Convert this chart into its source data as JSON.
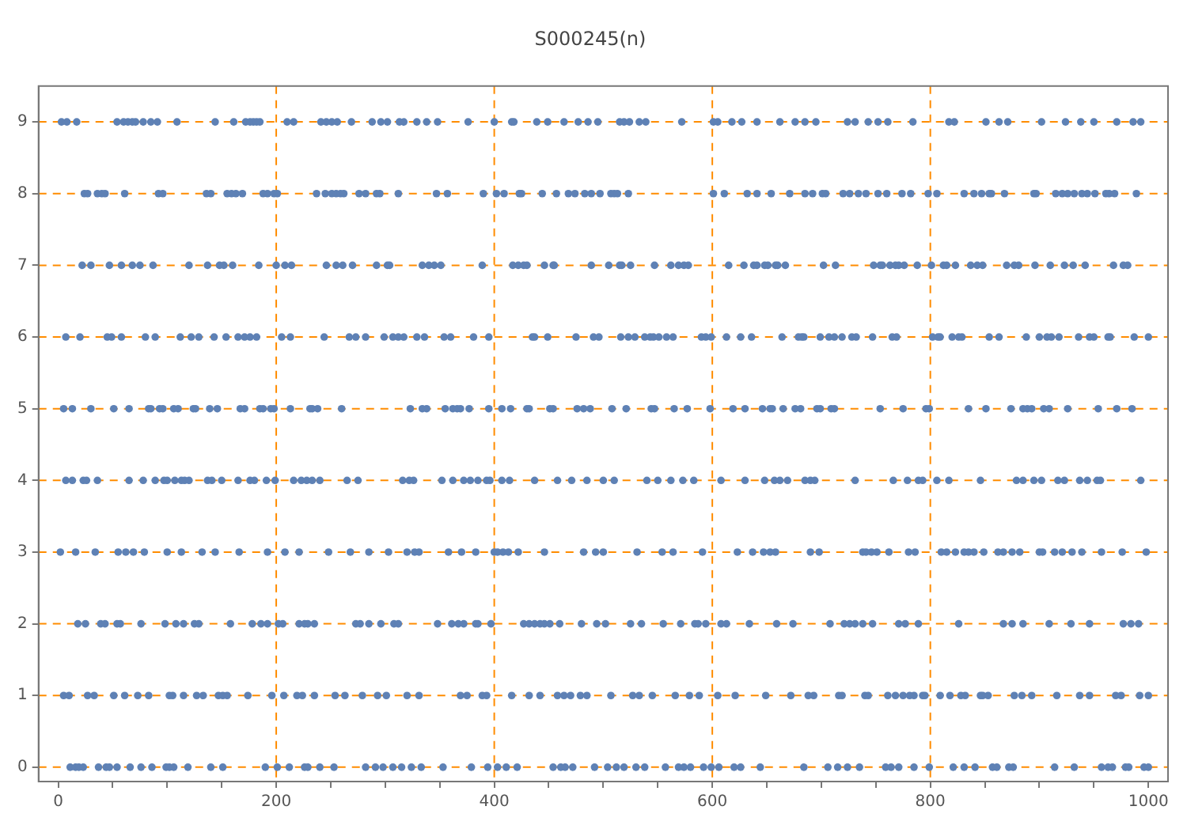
{
  "chart_data": {
    "type": "scatter",
    "title": "S000245(n)",
    "xlim": [
      -18,
      1018
    ],
    "ylim": [
      -0.2,
      9.5
    ],
    "xticks": [
      0,
      {
        "value": 50,
        "label": null
      },
      {
        "value": 100,
        "label": null
      },
      {
        "value": 150,
        "label": null
      },
      200,
      {
        "value": 250,
        "label": null
      },
      {
        "value": 300,
        "label": null
      },
      {
        "value": 350,
        "label": null
      },
      400,
      {
        "value": 450,
        "label": null
      },
      {
        "value": 500,
        "label": null
      },
      {
        "value": 550,
        "label": null
      },
      600,
      {
        "value": 650,
        "label": null
      },
      {
        "value": 700,
        "label": null
      },
      {
        "value": 750,
        "label": null
      },
      800,
      {
        "value": 850,
        "label": null
      },
      {
        "value": 900,
        "label": null
      },
      {
        "value": 950,
        "label": null
      },
      1000
    ],
    "yticks": [
      0,
      1,
      2,
      3,
      4,
      5,
      6,
      7,
      8,
      9
    ],
    "legend": false,
    "marker": "circle",
    "series": [
      {
        "color": "#5e81b5",
        "x": [
          11,
          16,
          19,
          23,
          37,
          44,
          47,
          54,
          66,
          76,
          86,
          99,
          102,
          106,
          119,
          140,
          151,
          190,
          201,
          212,
          226,
          229,
          240,
          253,
          282,
          291,
          298,
          307,
          315,
          324,
          333,
          353,
          379,
          394,
          403,
          411,
          421,
          454,
          461,
          465,
          472,
          492,
          504,
          512,
          519,
          530,
          538,
          557,
          569,
          574,
          580,
          592,
          599,
          606,
          620,
          626,
          644,
          684,
          706,
          715,
          724,
          735,
          759,
          764,
          771,
          785,
          799,
          821,
          831,
          841,
          857,
          861,
          872,
          876,
          914,
          932,
          957,
          963,
          967,
          979,
          982,
          996,
          1000
        ],
        "values": [
          0,
          0,
          0,
          0,
          0,
          0,
          0,
          0,
          0,
          0,
          0,
          0,
          0,
          0,
          0,
          0,
          0,
          0,
          0,
          0,
          0,
          0,
          0,
          0,
          0,
          0,
          0,
          0,
          0,
          0,
          0,
          0,
          0,
          0,
          0,
          0,
          0,
          0,
          0,
          0,
          0,
          0,
          0,
          0,
          0,
          0,
          0,
          0,
          0,
          0,
          0,
          0,
          0,
          0,
          0,
          0,
          0,
          0,
          0,
          0,
          0,
          0,
          0,
          0,
          0,
          0,
          0,
          0,
          0,
          0,
          0,
          0,
          0,
          0,
          0,
          0,
          0,
          0,
          0,
          0,
          0,
          0,
          0
        ]
      },
      {
        "color": "#5e81b5",
        "x": [
          5,
          10,
          27,
          33,
          51,
          61,
          73,
          83,
          102,
          105,
          115,
          127,
          133,
          147,
          151,
          155,
          174,
          196,
          207,
          219,
          224,
          235,
          254,
          263,
          279,
          293,
          301,
          320,
          331,
          369,
          375,
          389,
          393,
          416,
          432,
          442,
          458,
          464,
          470,
          479,
          485,
          507,
          527,
          533,
          545,
          566,
          579,
          588,
          605,
          621,
          649,
          672,
          688,
          693,
          716,
          719,
          740,
          743,
          761,
          768,
          775,
          781,
          785,
          793,
          795,
          809,
          818,
          828,
          832,
          846,
          848,
          853,
          877,
          884,
          893,
          916,
          937,
          946,
          970,
          975,
          992,
          1000
        ],
        "values": [
          1,
          1,
          1,
          1,
          1,
          1,
          1,
          1,
          1,
          1,
          1,
          1,
          1,
          1,
          1,
          1,
          1,
          1,
          1,
          1,
          1,
          1,
          1,
          1,
          1,
          1,
          1,
          1,
          1,
          1,
          1,
          1,
          1,
          1,
          1,
          1,
          1,
          1,
          1,
          1,
          1,
          1,
          1,
          1,
          1,
          1,
          1,
          1,
          1,
          1,
          1,
          1,
          1,
          1,
          1,
          1,
          1,
          1,
          1,
          1,
          1,
          1,
          1,
          1,
          1,
          1,
          1,
          1,
          1,
          1,
          1,
          1,
          1,
          1,
          1,
          1,
          1,
          1,
          1,
          1,
          1,
          1
        ]
      },
      {
        "color": "#5e81b5",
        "x": [
          18,
          25,
          39,
          43,
          54,
          57,
          76,
          98,
          108,
          115,
          125,
          129,
          158,
          178,
          186,
          192,
          202,
          206,
          221,
          226,
          229,
          235,
          273,
          277,
          285,
          296,
          308,
          312,
          348,
          361,
          367,
          372,
          383,
          385,
          397,
          427,
          432,
          437,
          442,
          446,
          451,
          460,
          480,
          494,
          502,
          525,
          535,
          555,
          571,
          584,
          587,
          594,
          608,
          613,
          634,
          659,
          674,
          708,
          721,
          726,
          731,
          738,
          747,
          771,
          777,
          789,
          826,
          867,
          875,
          885,
          909,
          929,
          946,
          977,
          984,
          991
        ],
        "values": [
          2,
          2,
          2,
          2,
          2,
          2,
          2,
          2,
          2,
          2,
          2,
          2,
          2,
          2,
          2,
          2,
          2,
          2,
          2,
          2,
          2,
          2,
          2,
          2,
          2,
          2,
          2,
          2,
          2,
          2,
          2,
          2,
          2,
          2,
          2,
          2,
          2,
          2,
          2,
          2,
          2,
          2,
          2,
          2,
          2,
          2,
          2,
          2,
          2,
          2,
          2,
          2,
          2,
          2,
          2,
          2,
          2,
          2,
          2,
          2,
          2,
          2,
          2,
          2,
          2,
          2,
          2,
          2,
          2,
          2,
          2,
          2,
          2,
          2,
          2,
          2
        ]
      },
      {
        "color": "#5e81b5",
        "x": [
          2,
          16,
          34,
          55,
          62,
          69,
          79,
          100,
          113,
          132,
          144,
          166,
          192,
          208,
          221,
          248,
          268,
          285,
          303,
          320,
          327,
          331,
          358,
          370,
          383,
          400,
          403,
          408,
          413,
          422,
          446,
          482,
          493,
          500,
          531,
          554,
          564,
          591,
          623,
          637,
          647,
          653,
          658,
          690,
          698,
          738,
          741,
          746,
          751,
          762,
          780,
          786,
          810,
          815,
          823,
          831,
          835,
          840,
          849,
          862,
          867,
          875,
          882,
          900,
          903,
          914,
          921,
          930,
          939,
          957,
          976,
          998
        ],
        "values": [
          3,
          3,
          3,
          3,
          3,
          3,
          3,
          3,
          3,
          3,
          3,
          3,
          3,
          3,
          3,
          3,
          3,
          3,
          3,
          3,
          3,
          3,
          3,
          3,
          3,
          3,
          3,
          3,
          3,
          3,
          3,
          3,
          3,
          3,
          3,
          3,
          3,
          3,
          3,
          3,
          3,
          3,
          3,
          3,
          3,
          3,
          3,
          3,
          3,
          3,
          3,
          3,
          3,
          3,
          3,
          3,
          3,
          3,
          3,
          3,
          3,
          3,
          3,
          3,
          3,
          3,
          3,
          3,
          3,
          3,
          3,
          3
        ]
      },
      {
        "color": "#5e81b5",
        "x": [
          7,
          13,
          23,
          26,
          36,
          65,
          78,
          89,
          97,
          100,
          107,
          113,
          116,
          120,
          137,
          141,
          150,
          165,
          176,
          180,
          191,
          199,
          216,
          223,
          228,
          233,
          240,
          265,
          275,
          316,
          322,
          326,
          352,
          362,
          372,
          378,
          385,
          393,
          396,
          407,
          414,
          437,
          458,
          471,
          485,
          500,
          510,
          540,
          550,
          562,
          573,
          583,
          608,
          630,
          648,
          657,
          662,
          669,
          685,
          690,
          694,
          731,
          766,
          779,
          789,
          793,
          806,
          817,
          846,
          879,
          885,
          895,
          902,
          917,
          923,
          937,
          944,
          953,
          956,
          993
        ],
        "values": [
          4,
          4,
          4,
          4,
          4,
          4,
          4,
          4,
          4,
          4,
          4,
          4,
          4,
          4,
          4,
          4,
          4,
          4,
          4,
          4,
          4,
          4,
          4,
          4,
          4,
          4,
          4,
          4,
          4,
          4,
          4,
          4,
          4,
          4,
          4,
          4,
          4,
          4,
          4,
          4,
          4,
          4,
          4,
          4,
          4,
          4,
          4,
          4,
          4,
          4,
          4,
          4,
          4,
          4,
          4,
          4,
          4,
          4,
          4,
          4,
          4,
          4,
          4,
          4,
          4,
          4,
          4,
          4,
          4,
          4,
          4,
          4,
          4,
          4,
          4,
          4,
          4,
          4,
          4,
          4
        ]
      },
      {
        "color": "#5e81b5",
        "x": [
          5,
          13,
          30,
          51,
          65,
          83,
          85,
          93,
          96,
          106,
          110,
          124,
          126,
          139,
          146,
          167,
          171,
          185,
          188,
          195,
          198,
          213,
          231,
          233,
          238,
          260,
          323,
          334,
          338,
          355,
          362,
          366,
          369,
          377,
          395,
          407,
          415,
          430,
          432,
          451,
          454,
          476,
          482,
          488,
          508,
          521,
          544,
          547,
          565,
          577,
          598,
          619,
          630,
          646,
          653,
          655,
          665,
          676,
          681,
          696,
          699,
          709,
          712,
          754,
          775,
          796,
          799,
          835,
          851,
          874,
          885,
          889,
          893,
          904,
          909,
          926,
          954,
          971,
          985
        ],
        "values": [
          5,
          5,
          5,
          5,
          5,
          5,
          5,
          5,
          5,
          5,
          5,
          5,
          5,
          5,
          5,
          5,
          5,
          5,
          5,
          5,
          5,
          5,
          5,
          5,
          5,
          5,
          5,
          5,
          5,
          5,
          5,
          5,
          5,
          5,
          5,
          5,
          5,
          5,
          5,
          5,
          5,
          5,
          5,
          5,
          5,
          5,
          5,
          5,
          5,
          5,
          5,
          5,
          5,
          5,
          5,
          5,
          5,
          5,
          5,
          5,
          5,
          5,
          5,
          5,
          5,
          5,
          5,
          5,
          5,
          5,
          5,
          5,
          5,
          5,
          5,
          5,
          5,
          5,
          5
        ]
      },
      {
        "color": "#5e81b5",
        "x": [
          7,
          20,
          45,
          49,
          58,
          80,
          89,
          112,
          122,
          129,
          143,
          154,
          165,
          171,
          176,
          182,
          205,
          213,
          244,
          267,
          273,
          282,
          299,
          307,
          312,
          317,
          329,
          336,
          354,
          360,
          381,
          395,
          435,
          437,
          449,
          475,
          491,
          496,
          516,
          523,
          529,
          538,
          543,
          546,
          551,
          558,
          564,
          590,
          594,
          599,
          613,
          626,
          636,
          664,
          679,
          684,
          682,
          699,
          707,
          712,
          719,
          728,
          732,
          747,
          765,
          769,
          802,
          807,
          809,
          820,
          826,
          829,
          854,
          863,
          888,
          900,
          907,
          911,
          918,
          936,
          946,
          950,
          963,
          965,
          987,
          1000
        ],
        "values": [
          6,
          6,
          6,
          6,
          6,
          6,
          6,
          6,
          6,
          6,
          6,
          6,
          6,
          6,
          6,
          6,
          6,
          6,
          6,
          6,
          6,
          6,
          6,
          6,
          6,
          6,
          6,
          6,
          6,
          6,
          6,
          6,
          6,
          6,
          6,
          6,
          6,
          6,
          6,
          6,
          6,
          6,
          6,
          6,
          6,
          6,
          6,
          6,
          6,
          6,
          6,
          6,
          6,
          6,
          6,
          6,
          6,
          6,
          6,
          6,
          6,
          6,
          6,
          6,
          6,
          6,
          6,
          6,
          6,
          6,
          6,
          6,
          6,
          6,
          6,
          6,
          6,
          6,
          6,
          6,
          6,
          6,
          6,
          6,
          6,
          6
        ]
      },
      {
        "color": "#5e81b5",
        "x": [
          22,
          30,
          47,
          58,
          68,
          75,
          87,
          120,
          137,
          148,
          152,
          160,
          184,
          200,
          208,
          214,
          246,
          255,
          261,
          270,
          292,
          302,
          304,
          334,
          340,
          345,
          351,
          389,
          417,
          422,
          427,
          430,
          446,
          454,
          455,
          489,
          505,
          515,
          517,
          525,
          547,
          562,
          569,
          574,
          578,
          615,
          629,
          638,
          641,
          648,
          651,
          658,
          660,
          667,
          702,
          713,
          748,
          754,
          756,
          763,
          768,
          771,
          776,
          788,
          801,
          812,
          815,
          823,
          837,
          843,
          848,
          870,
          877,
          881,
          896,
          910,
          923,
          931,
          942,
          968,
          977,
          981
        ],
        "values": [
          7,
          7,
          7,
          7,
          7,
          7,
          7,
          7,
          7,
          7,
          7,
          7,
          7,
          7,
          7,
          7,
          7,
          7,
          7,
          7,
          7,
          7,
          7,
          7,
          7,
          7,
          7,
          7,
          7,
          7,
          7,
          7,
          7,
          7,
          7,
          7,
          7,
          7,
          7,
          7,
          7,
          7,
          7,
          7,
          7,
          7,
          7,
          7,
          7,
          7,
          7,
          7,
          7,
          7,
          7,
          7,
          7,
          7,
          7,
          7,
          7,
          7,
          7,
          7,
          7,
          7,
          7,
          7,
          7,
          7,
          7,
          7,
          7,
          7,
          7,
          7,
          7,
          7,
          7,
          7,
          7,
          7
        ]
      },
      {
        "color": "#5e81b5",
        "x": [
          24,
          27,
          36,
          40,
          43,
          61,
          92,
          96,
          136,
          140,
          155,
          159,
          163,
          169,
          188,
          192,
          198,
          201,
          237,
          245,
          251,
          255,
          259,
          262,
          276,
          282,
          292,
          295,
          312,
          347,
          357,
          390,
          402,
          409,
          423,
          425,
          444,
          457,
          468,
          474,
          483,
          489,
          497,
          507,
          510,
          513,
          523,
          601,
          611,
          632,
          641,
          654,
          671,
          685,
          692,
          701,
          704,
          720,
          726,
          734,
          741,
          752,
          760,
          774,
          782,
          798,
          806,
          831,
          840,
          847,
          854,
          856,
          868,
          895,
          897,
          915,
          921,
          926,
          932,
          939,
          944,
          951,
          961,
          964,
          969,
          989
        ],
        "values": [
          8,
          8,
          8,
          8,
          8,
          8,
          8,
          8,
          8,
          8,
          8,
          8,
          8,
          8,
          8,
          8,
          8,
          8,
          8,
          8,
          8,
          8,
          8,
          8,
          8,
          8,
          8,
          8,
          8,
          8,
          8,
          8,
          8,
          8,
          8,
          8,
          8,
          8,
          8,
          8,
          8,
          8,
          8,
          8,
          8,
          8,
          8,
          8,
          8,
          8,
          8,
          8,
          8,
          8,
          8,
          8,
          8,
          8,
          8,
          8,
          8,
          8,
          8,
          8,
          8,
          8,
          8,
          8,
          8,
          8,
          8,
          8,
          8,
          8,
          8,
          8,
          8,
          8,
          8,
          8,
          8,
          8,
          8,
          8,
          8,
          8
        ]
      },
      {
        "color": "#5e81b5",
        "x": [
          3,
          8,
          17,
          54,
          60,
          64,
          68,
          71,
          78,
          85,
          91,
          109,
          144,
          161,
          172,
          176,
          179,
          182,
          185,
          210,
          216,
          241,
          246,
          251,
          256,
          269,
          288,
          296,
          302,
          313,
          317,
          329,
          338,
          348,
          376,
          400,
          416,
          418,
          439,
          449,
          464,
          477,
          486,
          495,
          515,
          519,
          524,
          533,
          539,
          572,
          601,
          605,
          618,
          627,
          641,
          662,
          676,
          685,
          695,
          724,
          731,
          743,
          752,
          761,
          784,
          817,
          822,
          851,
          863,
          871,
          902,
          924,
          938,
          950,
          971,
          986,
          993
        ],
        "values": [
          9,
          9,
          9,
          9,
          9,
          9,
          9,
          9,
          9,
          9,
          9,
          9,
          9,
          9,
          9,
          9,
          9,
          9,
          9,
          9,
          9,
          9,
          9,
          9,
          9,
          9,
          9,
          9,
          9,
          9,
          9,
          9,
          9,
          9,
          9,
          9,
          9,
          9,
          9,
          9,
          9,
          9,
          9,
          9,
          9,
          9,
          9,
          9,
          9,
          9,
          9,
          9,
          9,
          9,
          9,
          9,
          9,
          9,
          9,
          9,
          9,
          9,
          9,
          9,
          9,
          9,
          9,
          9,
          9,
          9,
          9,
          9,
          9,
          9,
          9,
          9,
          9
        ]
      }
    ],
    "ref_lines": [
      {
        "axis": "x",
        "value": 200,
        "color": "#ff8c00",
        "line_style": "dashed"
      },
      {
        "axis": "x",
        "value": 400,
        "color": "#ff8c00",
        "line_style": "dashed"
      },
      {
        "axis": "x",
        "value": 600,
        "color": "#ff8c00",
        "line_style": "dashed"
      },
      {
        "axis": "x",
        "value": 800,
        "color": "#ff8c00",
        "line_style": "dashed"
      },
      {
        "axis": "y",
        "value": 0,
        "color": "#ff8c00",
        "line_style": "dashed"
      },
      {
        "axis": "y",
        "value": 1,
        "color": "#ff8c00",
        "line_style": "dashed"
      },
      {
        "axis": "y",
        "value": 2,
        "color": "#ff8c00",
        "line_style": "dashed"
      },
      {
        "axis": "y",
        "value": 3,
        "color": "#ff8c00",
        "line_style": "dashed"
      },
      {
        "axis": "y",
        "value": 4,
        "color": "#ff8c00",
        "line_style": "dashed"
      },
      {
        "axis": "y",
        "value": 5,
        "color": "#ff8c00",
        "line_style": "dashed"
      },
      {
        "axis": "y",
        "value": 6,
        "color": "#ff8c00",
        "line_style": "dashed"
      },
      {
        "axis": "y",
        "value": 7,
        "color": "#ff8c00",
        "line_style": "dashed"
      },
      {
        "axis": "y",
        "value": 8,
        "color": "#ff8c00",
        "line_style": "dashed"
      },
      {
        "axis": "y",
        "value": 9,
        "color": "#ff8c00",
        "line_style": "dashed"
      }
    ]
  }
}
